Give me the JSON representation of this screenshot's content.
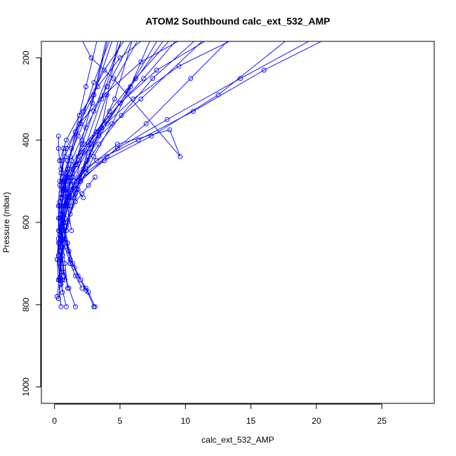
{
  "chart_data": {
    "type": "line",
    "title": "ATOM2 Southbound calc_ext_532_AMP",
    "xlabel": "calc_ext_532_AMP",
    "ylabel": "Pressure (mbar)",
    "xlim": [
      -1,
      29
    ],
    "ylim": [
      1040,
      160
    ],
    "y_reversed": true,
    "x_ticks": [
      0,
      5,
      10,
      15,
      20,
      25
    ],
    "y_ticks": [
      200,
      400,
      600,
      800,
      1000
    ],
    "grid": false,
    "line_color": "#0000ff",
    "marker": "open-circle",
    "series": [
      {
        "x": [
          0.3,
          0.5,
          0.2,
          0.4,
          0.8,
          1.3,
          2.1,
          3.0,
          5.2
        ],
        "y": [
          785,
          740,
          690,
          630,
          560,
          490,
          410,
          330,
          150
        ]
      },
      {
        "x": [
          0.2,
          0.4,
          0.6,
          1.0,
          1.6,
          2.5,
          3.6,
          4.9
        ],
        "y": [
          780,
          735,
          680,
          600,
          530,
          450,
          370,
          150
        ]
      },
      {
        "x": [
          0.5,
          0.3,
          0.6,
          1.2,
          2.2,
          3.4,
          4.6,
          6.0
        ],
        "y": [
          805,
          740,
          660,
          560,
          470,
          380,
          300,
          150
        ]
      },
      {
        "x": [
          0.9,
          0.5,
          0.4,
          0.9,
          1.8,
          3.0,
          4.4,
          5.8,
          7.4
        ],
        "y": [
          805,
          750,
          690,
          610,
          520,
          440,
          360,
          270,
          150
        ]
      },
      {
        "x": [
          1.6,
          1.1,
          0.7,
          0.5,
          0.8,
          1.5,
          2.6,
          4.0,
          5.6,
          8.5
        ],
        "y": [
          805,
          760,
          720,
          660,
          590,
          510,
          440,
          360,
          280,
          150
        ]
      },
      {
        "x": [
          3.0,
          2.4,
          1.8,
          1.2,
          0.8,
          0.6,
          0.9,
          1.7,
          2.8,
          4.2,
          6.2,
          9.0
        ],
        "y": [
          805,
          760,
          730,
          690,
          640,
          580,
          520,
          460,
          400,
          330,
          250,
          150
        ]
      },
      {
        "x": [
          3.1,
          2.6,
          2.0,
          1.4,
          1.0,
          0.7,
          1.0,
          2.0,
          3.4,
          5.1,
          7.5,
          11.0
        ],
        "y": [
          805,
          770,
          740,
          700,
          650,
          600,
          540,
          480,
          410,
          340,
          250,
          150
        ]
      },
      {
        "x": [
          2.4,
          2.0,
          1.5,
          1.1,
          0.7,
          0.5,
          0.9,
          1.8,
          3.2,
          5.0,
          7.8,
          12.0
        ],
        "y": [
          765,
          740,
          710,
          670,
          620,
          560,
          500,
          440,
          380,
          310,
          230,
          150
        ]
      },
      {
        "x": [
          2.1,
          1.6,
          1.2,
          0.8,
          0.5,
          0.4,
          0.9,
          2.0,
          3.6,
          6.0,
          9.5,
          14.0
        ],
        "y": [
          760,
          730,
          700,
          660,
          610,
          550,
          490,
          430,
          370,
          300,
          220,
          150
        ]
      },
      {
        "x": [
          0.3,
          0.2,
          0.3,
          0.5,
          1.0,
          2.4,
          4.8,
          8.8,
          9.6,
          4.5,
          2.8,
          2.0
        ],
        "y": [
          740,
          690,
          640,
          590,
          530,
          470,
          410,
          375,
          440,
          250,
          200,
          150
        ]
      },
      {
        "x": [
          0.4,
          0.3,
          0.4,
          0.7,
          1.5,
          3.2,
          6.4,
          10.6,
          16.0,
          21.0
        ],
        "y": [
          740,
          680,
          620,
          560,
          500,
          450,
          400,
          330,
          230,
          150
        ]
      },
      {
        "x": [
          0.6,
          0.4,
          0.5,
          0.9,
          1.8,
          3.8,
          7.4,
          12.5,
          18.0
        ],
        "y": [
          740,
          670,
          610,
          550,
          500,
          450,
          390,
          290,
          150
        ]
      },
      {
        "x": [
          0.7,
          0.5,
          0.6,
          1.1,
          2.4,
          4.8,
          8.6,
          14.2,
          20.0
        ],
        "y": [
          730,
          660,
          600,
          540,
          480,
          420,
          350,
          250,
          150
        ]
      },
      {
        "x": [
          0.5,
          0.3,
          0.4,
          0.8,
          1.6,
          3.4,
          6.6,
          11.6
        ],
        "y": [
          720,
          650,
          590,
          520,
          460,
          390,
          300,
          150
        ]
      },
      {
        "x": [
          0.8,
          0.6,
          0.6,
          1.0,
          2.0,
          4.0,
          7.0,
          10.4,
          13.5
        ],
        "y": [
          740,
          680,
          620,
          560,
          500,
          440,
          360,
          250,
          150
        ]
      },
      {
        "x": [
          1.2,
          1.0,
          0.7,
          0.5,
          0.5,
          0.9,
          1.9,
          3.8,
          6.6,
          10.0
        ],
        "y": [
          700,
          650,
          600,
          540,
          480,
          420,
          360,
          290,
          210,
          150
        ]
      },
      {
        "x": [
          0.4,
          0.3,
          0.5,
          1.1,
          2.3,
          4.2,
          6.8,
          9.5
        ],
        "y": [
          650,
          590,
          530,
          470,
          410,
          340,
          250,
          150
        ]
      },
      {
        "x": [
          0.3,
          0.3,
          0.4,
          0.8,
          1.6,
          3.0,
          4.5
        ],
        "y": [
          620,
          560,
          500,
          440,
          380,
          290,
          150
        ]
      },
      {
        "x": [
          0.4,
          0.6,
          1.0,
          1.8,
          2.9,
          4.1
        ],
        "y": [
          560,
          500,
          450,
          390,
          310,
          150
        ]
      },
      {
        "x": [
          1.3,
          1.0,
          0.8,
          1.2,
          2.0,
          3.0,
          4.3
        ],
        "y": [
          620,
          560,
          500,
          440,
          360,
          260,
          150
        ]
      },
      {
        "x": [
          2.8,
          2.4,
          1.9,
          1.3,
          0.9,
          0.7,
          1.2,
          2.2,
          3.6,
          5.2
        ],
        "y": [
          430,
          460,
          490,
          520,
          560,
          600,
          540,
          430,
          300,
          150
        ]
      },
      {
        "x": [
          3.1,
          2.6,
          2.1,
          1.6,
          1.2,
          0.9,
          1.5,
          2.6,
          4.0,
          6.5
        ],
        "y": [
          490,
          510,
          530,
          550,
          580,
          620,
          540,
          420,
          290,
          150
        ]
      },
      {
        "x": [
          0.3,
          0.3,
          0.4,
          0.6,
          0.9,
          1.4,
          2.1,
          3.0,
          4.0
        ],
        "y": [
          390,
          420,
          450,
          490,
          530,
          480,
          400,
          290,
          150
        ]
      },
      {
        "x": [
          0.7,
          0.6,
          0.5,
          0.4,
          0.6,
          1.0,
          1.6,
          2.4,
          3.3
        ],
        "y": [
          420,
          450,
          480,
          510,
          540,
          470,
          380,
          270,
          150
        ]
      },
      {
        "x": [
          1.8,
          1.4,
          1.0,
          0.7,
          0.5,
          0.7,
          1.3,
          2.2,
          3.8,
          5.5
        ],
        "y": [
          450,
          470,
          490,
          510,
          540,
          500,
          420,
          330,
          230,
          150
        ]
      },
      {
        "x": [
          2.2,
          1.7,
          1.2,
          0.8,
          0.5,
          0.4,
          0.9,
          1.9,
          3.3,
          5.0,
          7.0
        ],
        "y": [
          540,
          520,
          500,
          480,
          470,
          450,
          400,
          340,
          270,
          200,
          150
        ]
      },
      {
        "x": [
          1.0,
          0.8,
          0.6,
          0.5,
          0.7,
          1.3,
          2.4,
          4.0,
          6.0
        ],
        "y": [
          760,
          700,
          640,
          580,
          520,
          450,
          370,
          270,
          150
        ]
      },
      {
        "x": [
          0.6,
          0.5,
          0.5,
          0.7,
          1.4,
          2.8,
          5.0,
          8.0
        ],
        "y": [
          770,
          700,
          630,
          560,
          490,
          410,
          310,
          150
        ]
      }
    ]
  }
}
